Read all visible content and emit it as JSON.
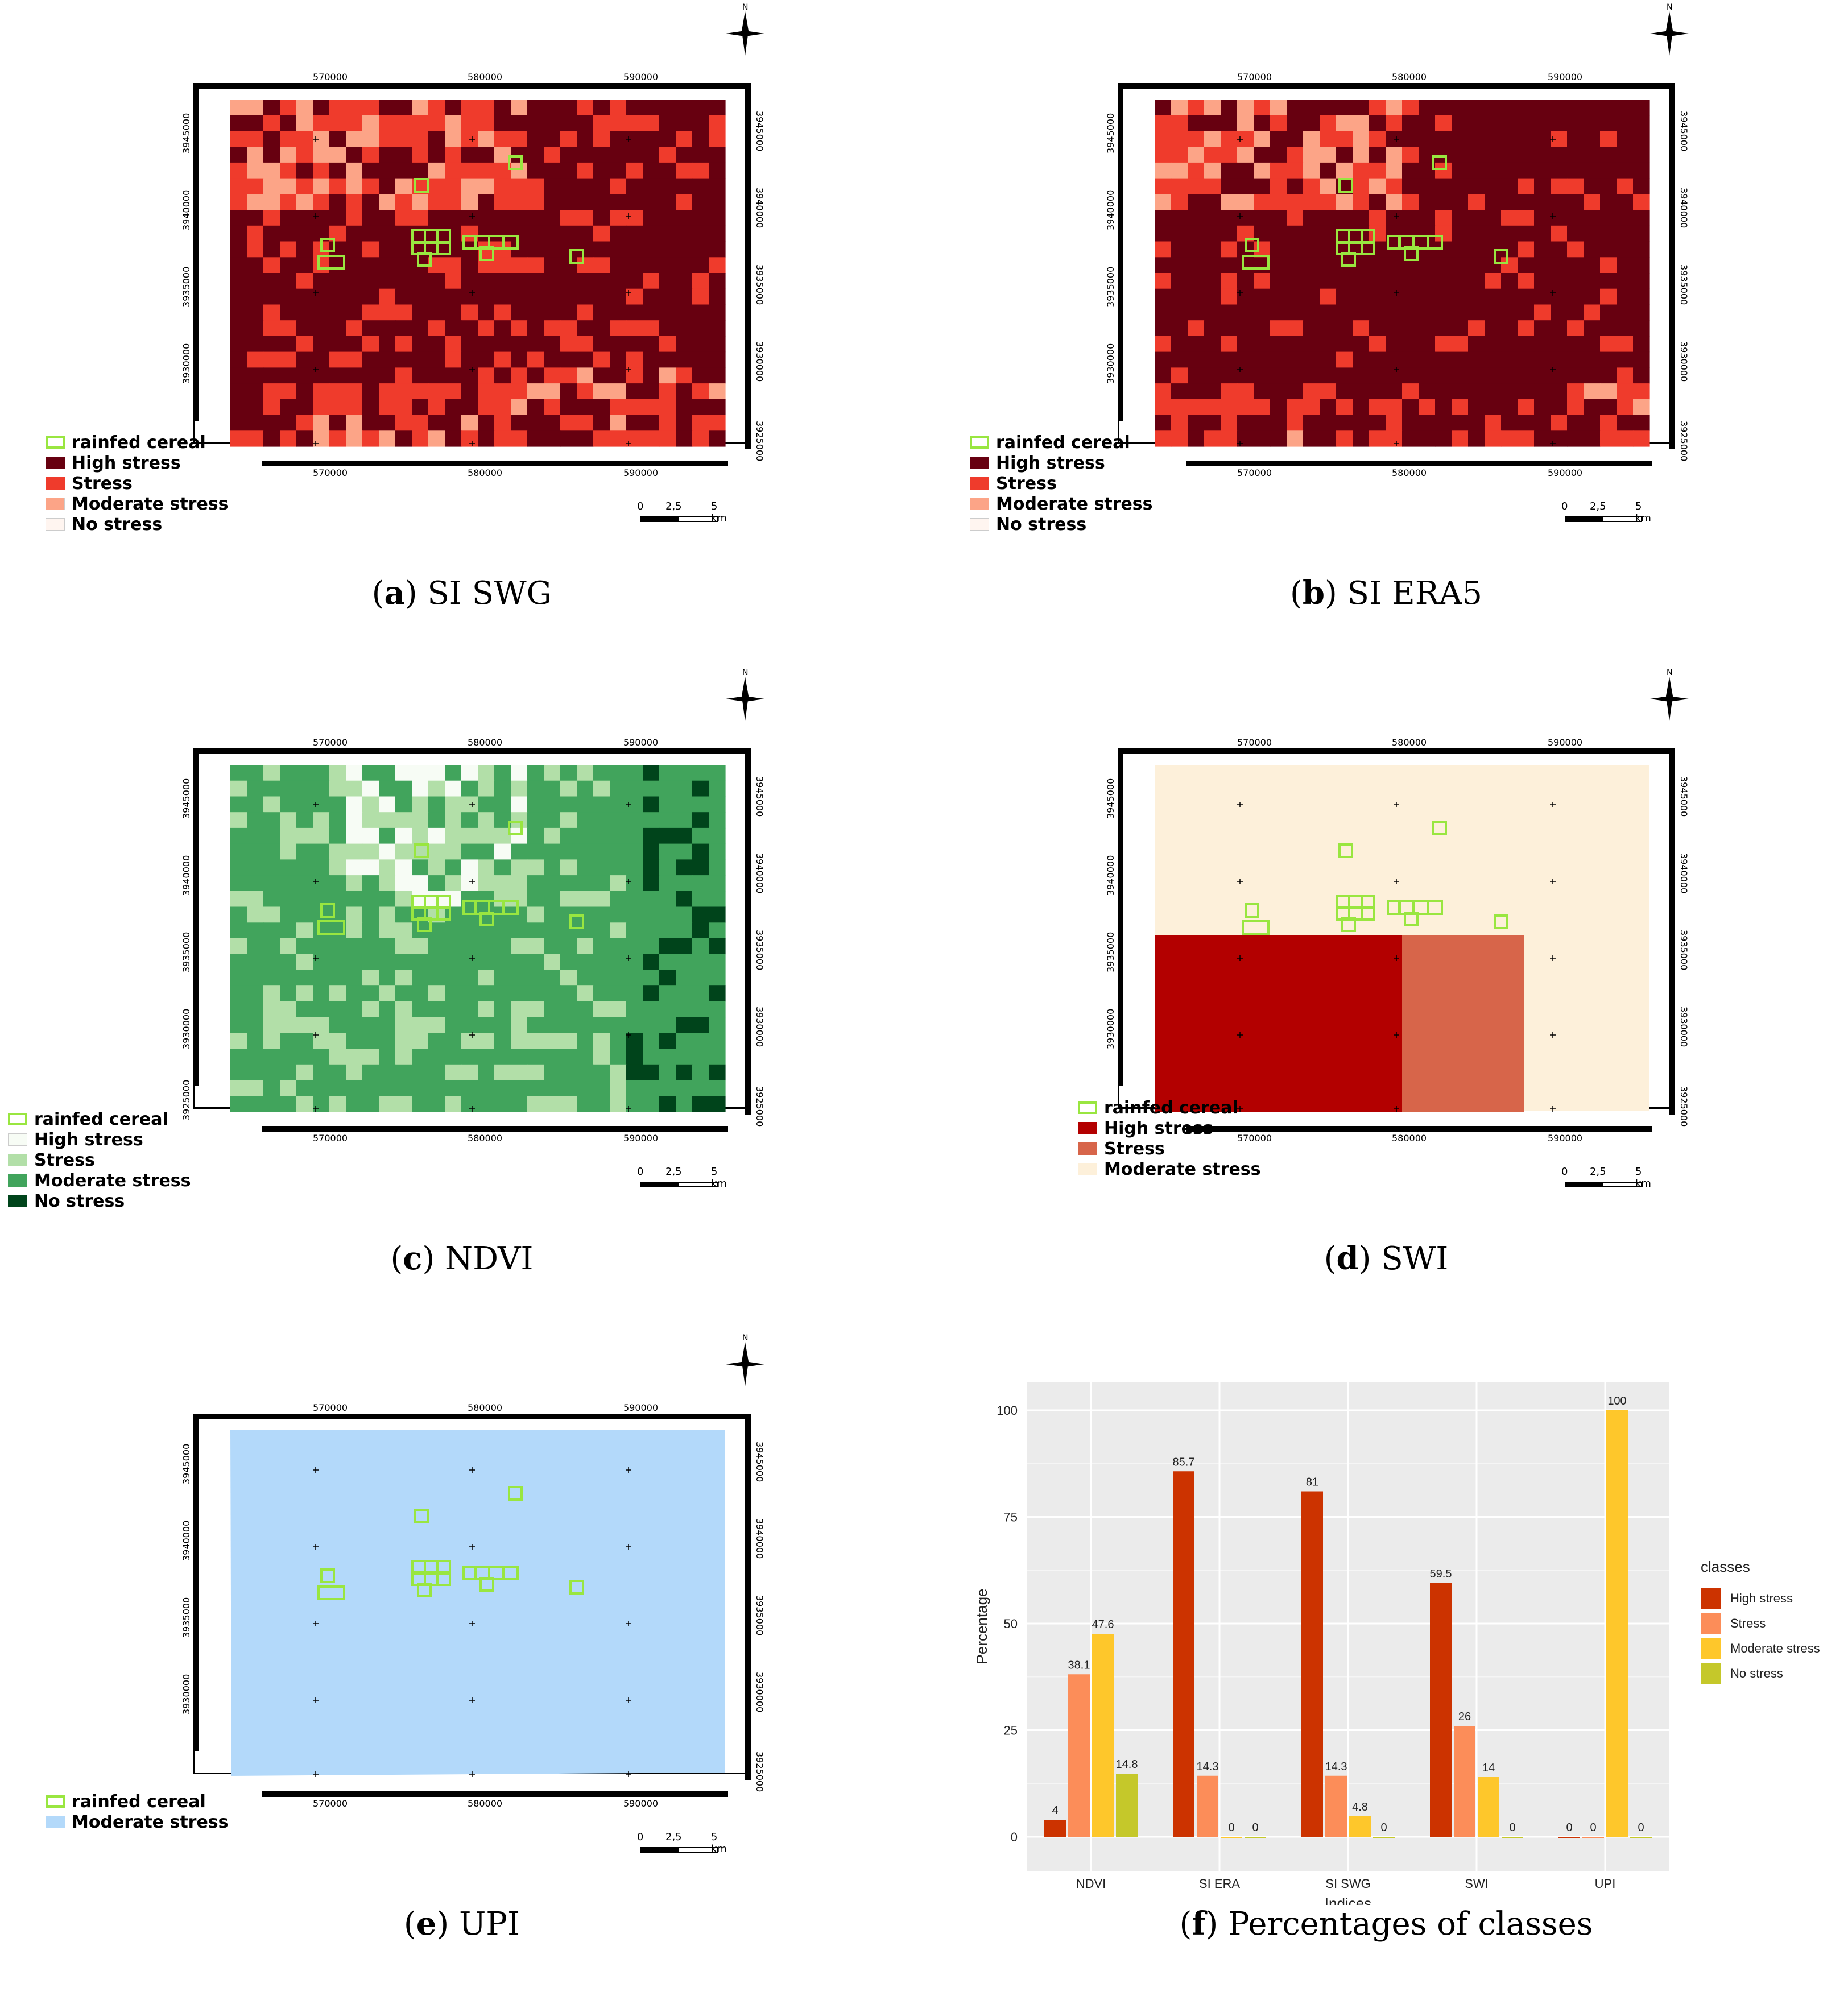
{
  "panels": [
    {
      "id": "a",
      "letter": "a",
      "title": "SI SWG"
    },
    {
      "id": "b",
      "letter": "b",
      "title": "SI ERA5"
    },
    {
      "id": "c",
      "letter": "c",
      "title": "NDVI"
    },
    {
      "id": "d",
      "letter": "d",
      "title": "SWI"
    },
    {
      "id": "e",
      "letter": "e",
      "title": "UPI"
    },
    {
      "id": "f",
      "letter": "f",
      "title": "Percentages of classes"
    }
  ],
  "map_axes": {
    "x_ticks": [
      "570000",
      "580000",
      "590000"
    ],
    "y_ticks": [
      "3945000",
      "3940000",
      "3935000",
      "3930000",
      "3925000"
    ],
    "north": "N"
  },
  "scalebar": {
    "labels": [
      "0",
      "2,5",
      "5 km"
    ]
  },
  "legends": {
    "si": [
      {
        "label": "rainfed cereal",
        "color": "#99e640",
        "outline": true
      },
      {
        "label": "High stress",
        "color": "#670010"
      },
      {
        "label": "Stress",
        "color": "#ef3b2c"
      },
      {
        "label": "Moderate stress",
        "color": "#fca487"
      },
      {
        "label": "No stress",
        "color": "#fff5f0"
      }
    ],
    "ndvi": [
      {
        "label": "rainfed cereal",
        "color": "#99e640",
        "outline": true
      },
      {
        "label": "High stress",
        "color": "#f7fcf5"
      },
      {
        "label": "Stress",
        "color": "#b2dfa8"
      },
      {
        "label": "Moderate stress",
        "color": "#41a45c"
      },
      {
        "label": "No stress",
        "color": "#00441b"
      }
    ],
    "swi": [
      {
        "label": "rainfed cereal",
        "color": "#99e640",
        "outline": true
      },
      {
        "label": "High stress",
        "color": "#b30000"
      },
      {
        "label": "Stress",
        "color": "#d7654a"
      },
      {
        "label": "Moderate stress",
        "color": "#fdf0da"
      }
    ],
    "upi": [
      {
        "label": "rainfed cereal",
        "color": "#99e640",
        "outline": true
      },
      {
        "label": "Moderate stress",
        "color": "#b3d9fa"
      }
    ]
  },
  "chart_data": {
    "type": "bar",
    "xlabel": "Indices",
    "ylabel": "Percentage",
    "ylim": [
      0,
      105
    ],
    "yticks": [
      0,
      25,
      50,
      75,
      100
    ],
    "categories": [
      "NDVI",
      "SI ERA",
      "SI SWG",
      "SWI",
      "UPI"
    ],
    "legend_title": "classes",
    "series": [
      {
        "name": "High stress",
        "color": "#cc3300",
        "values": [
          4,
          85.7,
          81,
          59.5,
          0
        ]
      },
      {
        "name": "Stress",
        "color": "#fc8d59",
        "values": [
          38.1,
          14.3,
          14.3,
          26,
          0
        ]
      },
      {
        "name": "Moderate stress",
        "color": "#fec72b",
        "values": [
          47.6,
          0,
          4.8,
          14,
          100
        ]
      },
      {
        "name": "No stress",
        "color": "#c5c82a",
        "values": [
          14.8,
          0,
          0,
          0,
          0
        ]
      }
    ],
    "data_labels": [
      [
        "4",
        "85.7",
        "81",
        "59.5",
        "0"
      ],
      [
        "38.1",
        "14.3",
        "14.3",
        "26",
        "0"
      ],
      [
        "47.6",
        "0",
        "4.8",
        "14",
        "100"
      ],
      [
        "14.8",
        "0",
        "0",
        "0",
        "0"
      ]
    ]
  }
}
